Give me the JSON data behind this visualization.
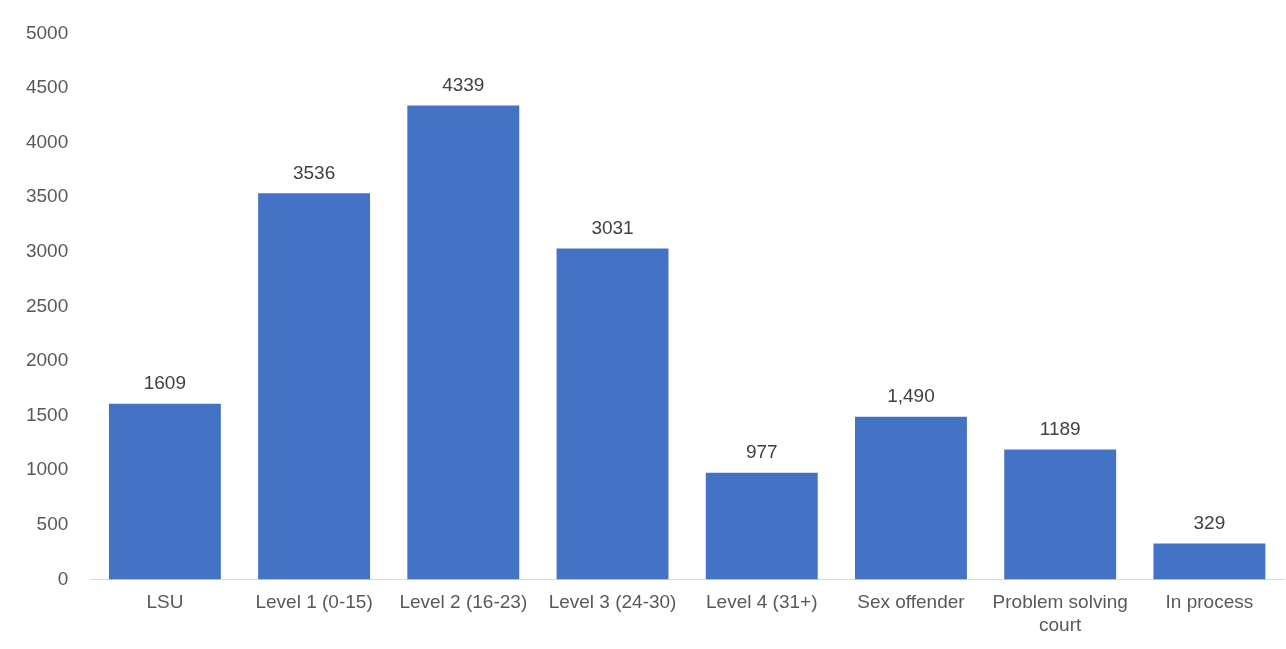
{
  "chart_data": {
    "type": "bar",
    "categories": [
      "LSU",
      "Level 1 (0-15)",
      "Level 2 (16-23)",
      "Level 3 (24-30)",
      "Level 4 (31+)",
      "Sex offender",
      "Problem solving court",
      "In process"
    ],
    "values": [
      1609,
      3536,
      4339,
      3031,
      977,
      1490,
      1189,
      329
    ],
    "value_labels": [
      "1609",
      "3536",
      "4339",
      "3031",
      "977",
      "1,490",
      "1189",
      "329"
    ],
    "color": "#4472c4",
    "ylim": [
      0,
      5000
    ],
    "yticks": [
      0,
      500,
      1000,
      1500,
      2000,
      2500,
      3000,
      3500,
      4000,
      4500,
      5000
    ],
    "grid": false,
    "legend": false
  }
}
